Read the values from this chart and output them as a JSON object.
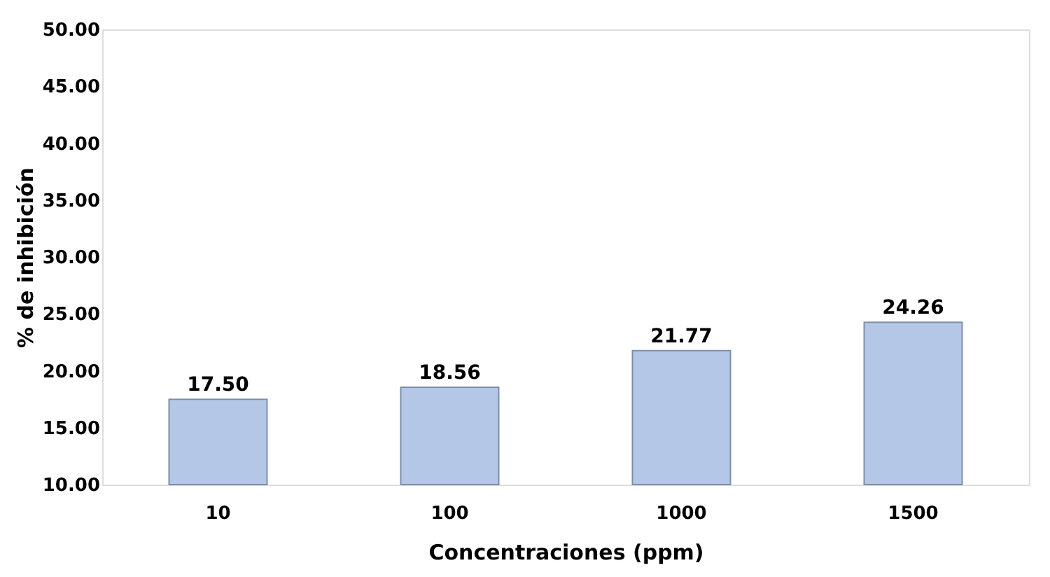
{
  "chart_data": {
    "type": "bar",
    "xlabel": "Concentraciones (ppm)",
    "ylabel": "% de inhibición",
    "categories": [
      "10",
      "100",
      "1000",
      "1500"
    ],
    "values": [
      17.5,
      18.56,
      21.77,
      24.26
    ],
    "value_labels": [
      "17.50",
      "18.56",
      "21.77",
      "24.26"
    ],
    "color": "#b4c7e7",
    "ylim": [
      10,
      50
    ],
    "yticks": [
      {
        "value": 10,
        "label": "10.00"
      },
      {
        "value": 15,
        "label": "15.00"
      },
      {
        "value": 20,
        "label": "20.00"
      },
      {
        "value": 25,
        "label": "25.00"
      },
      {
        "value": 30,
        "label": "30.00"
      },
      {
        "value": 35,
        "label": "35.00"
      },
      {
        "value": 40,
        "label": "40.00"
      },
      {
        "value": 45,
        "label": "45.00"
      },
      {
        "value": 50,
        "label": "50.00"
      }
    ],
    "grid": false
  }
}
